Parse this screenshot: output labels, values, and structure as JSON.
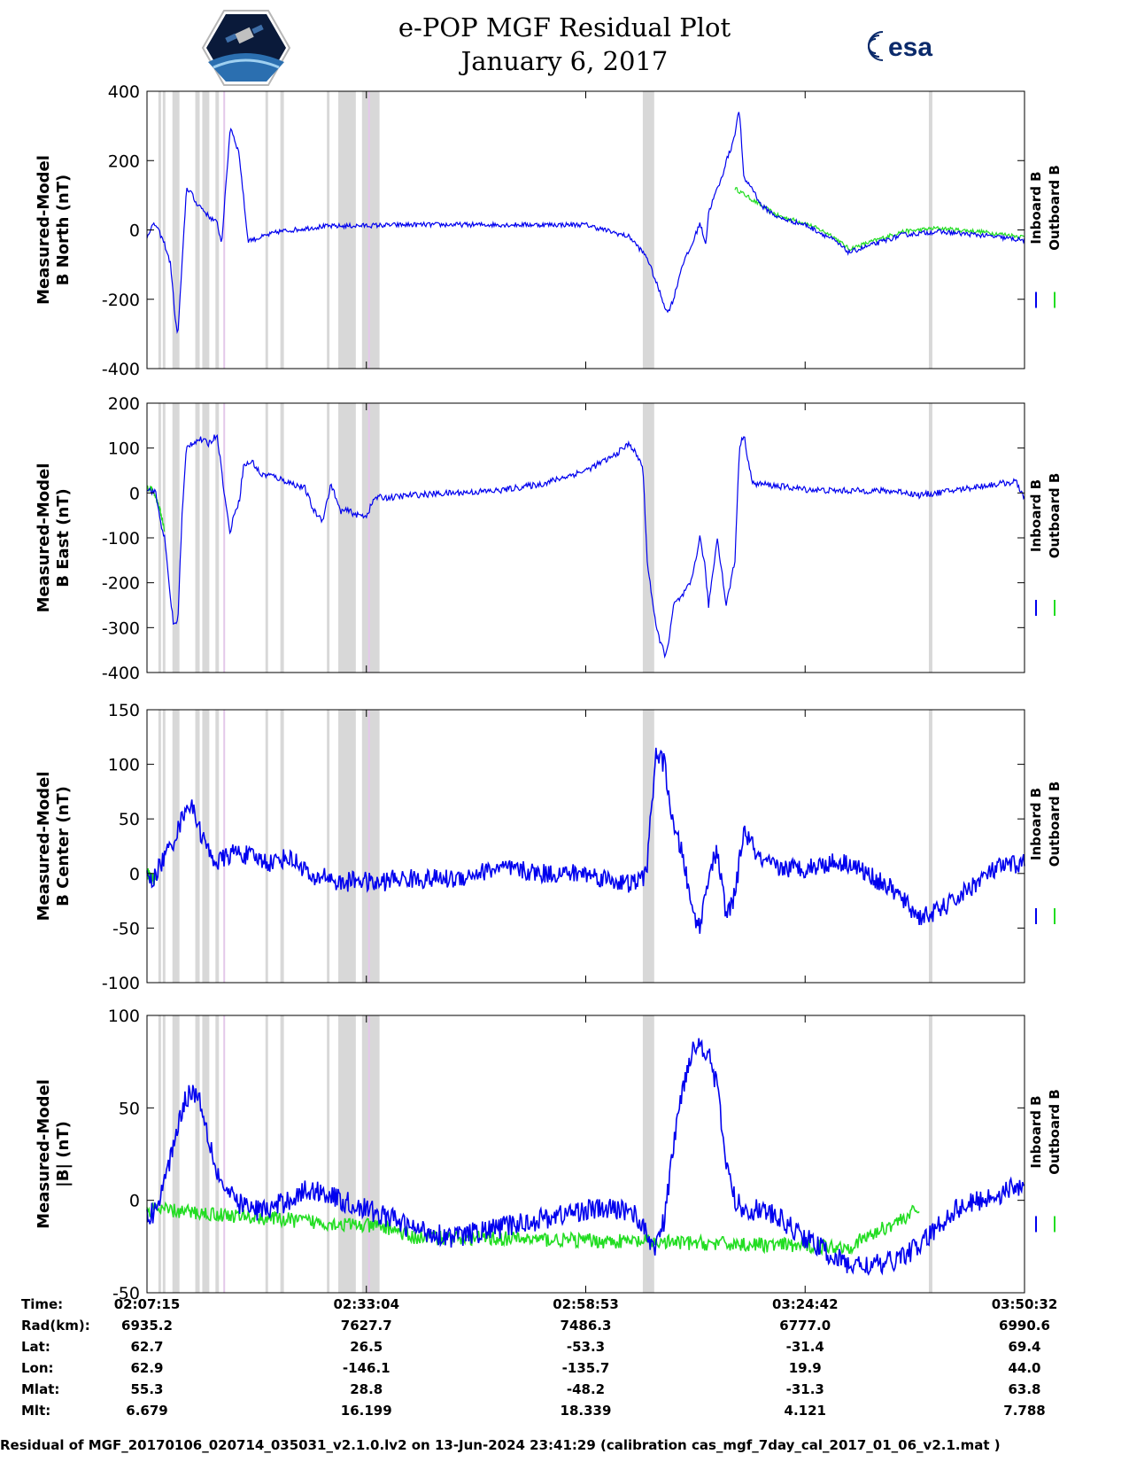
{
  "title": "e-POP MGF Residual Plot",
  "subtitle": "January 6, 2017",
  "logos": {
    "left": "cassiope-mission-logo",
    "right_text": "esa"
  },
  "legend": {
    "inboard": "Inboard B",
    "outboard": "Outboard B",
    "inboard_color": "#0000ee",
    "outboard_color": "#22dd22"
  },
  "colors": {
    "gap_shade": "#d8d8d8",
    "gap_magenta": "#e4c8ea"
  },
  "chart_data": [
    {
      "type": "line",
      "ylabel": [
        "Measured-Model",
        "B North (nT)"
      ],
      "ylim": [
        -400,
        400
      ],
      "yticks": [
        -400,
        -200,
        0,
        200,
        400
      ],
      "series": [
        {
          "name": "Inboard B",
          "color": "#0000ee",
          "x": [
            0,
            0.5,
            1,
            2,
            2.7,
            3.2,
            3.5,
            4,
            4.5,
            5,
            5.5,
            6,
            7,
            8,
            8.5,
            9.5,
            10.5,
            11.5,
            12.5,
            15,
            20,
            30,
            40,
            50,
            55,
            57,
            58,
            59.3,
            60,
            61,
            62,
            63,
            63.7,
            64,
            64.7,
            65.5,
            66,
            66.5,
            67,
            67.5,
            68,
            69,
            70,
            72,
            75,
            78,
            80,
            83,
            86,
            90,
            95,
            100
          ],
          "y": [
            -20,
            10,
            15,
            -40,
            -100,
            -250,
            -310,
            -100,
            120,
            110,
            80,
            70,
            40,
            20,
            -40,
            300,
            220,
            -30,
            -25,
            -5,
            10,
            15,
            15,
            15,
            -20,
            -80,
            -150,
            -240,
            -200,
            -100,
            -50,
            20,
            -40,
            50,
            100,
            150,
            200,
            230,
            280,
            350,
            150,
            120,
            70,
            35,
            15,
            -25,
            -65,
            -40,
            -15,
            -5,
            -15,
            -30
          ],
          "noise": 7
        },
        {
          "name": "Outboard B",
          "color": "#22dd22",
          "x": [
            67,
            70,
            72,
            75,
            78,
            80,
            83,
            86,
            90,
            95,
            100
          ],
          "y": [
            120,
            70,
            40,
            20,
            -15,
            -55,
            -30,
            -5,
            5,
            -5,
            -20
          ],
          "noise": 6
        }
      ]
    },
    {
      "type": "line",
      "ylabel": [
        "Measured-Model",
        "B East (nT)"
      ],
      "ylim": [
        -400,
        200
      ],
      "yticks": [
        -400,
        -300,
        -200,
        -100,
        0,
        100,
        200
      ],
      "series": [
        {
          "name": "Inboard B",
          "color": "#0000ee",
          "x": [
            0,
            1,
            1.5,
            2,
            2.5,
            3,
            3.5,
            4,
            4.5,
            5,
            6,
            7,
            8,
            9,
            9.5,
            10,
            10.5,
            11,
            12,
            13,
            14,
            16,
            18,
            19,
            20,
            21,
            22,
            23,
            24,
            25,
            26,
            28,
            30,
            35,
            40,
            45,
            50,
            53,
            55,
            56.5,
            57,
            58,
            59,
            59.5,
            60,
            61,
            62,
            63,
            63.5,
            64,
            65,
            66,
            67,
            67.5,
            68,
            69,
            70,
            72,
            75,
            78,
            80,
            83,
            86,
            88,
            90,
            95,
            99,
            100
          ],
          "y": [
            10,
            0,
            -60,
            -100,
            -200,
            -290,
            -290,
            -50,
            100,
            110,
            120,
            110,
            130,
            -30,
            -90,
            -40,
            -20,
            60,
            70,
            40,
            40,
            25,
            10,
            -40,
            -60,
            20,
            -40,
            -40,
            -50,
            -50,
            -10,
            -10,
            -5,
            0,
            5,
            20,
            50,
            80,
            110,
            60,
            -150,
            -300,
            -360,
            -330,
            -250,
            -230,
            -200,
            -100,
            -150,
            -250,
            -100,
            -250,
            -150,
            100,
            130,
            20,
            20,
            15,
            8,
            5,
            5,
            5,
            3,
            -5,
            0,
            15,
            25,
            -10
          ],
          "noise": 7
        },
        {
          "name": "Outboard B",
          "color": "#22dd22",
          "x": [
            0,
            0.5,
            1,
            1.5,
            2
          ],
          "y": [
            10,
            10,
            -10,
            -40,
            -80
          ],
          "noise": 7
        }
      ]
    },
    {
      "type": "line",
      "ylabel": [
        "Measured-Model",
        "B Center (nT)"
      ],
      "ylim": [
        -100,
        150
      ],
      "yticks": [
        -100,
        -50,
        0,
        50,
        100,
        150
      ],
      "series": [
        {
          "name": "Inboard B",
          "color": "#0000ee",
          "x": [
            0,
            0.5,
            1,
            2,
            3,
            4,
            4.5,
            5,
            5.5,
            6,
            7,
            8,
            9,
            10,
            12,
            14,
            16,
            18,
            19,
            20,
            22,
            24,
            26,
            28,
            30,
            35,
            40,
            45,
            50,
            55,
            56.5,
            57,
            58,
            59,
            60,
            61,
            62,
            63,
            64,
            65,
            66,
            67,
            68,
            70,
            72,
            75,
            78,
            80,
            82,
            85,
            88,
            90,
            92,
            95,
            97,
            100
          ],
          "y": [
            5,
            -10,
            0,
            15,
            30,
            50,
            65,
            60,
            55,
            40,
            20,
            10,
            15,
            20,
            15,
            10,
            15,
            5,
            -10,
            0,
            -10,
            -5,
            -10,
            -5,
            -5,
            -5,
            5,
            0,
            0,
            -10,
            -5,
            10,
            110,
            100,
            40,
            20,
            -30,
            -50,
            0,
            20,
            -40,
            -20,
            40,
            10,
            5,
            5,
            10,
            10,
            0,
            -15,
            -40,
            -35,
            -25,
            -5,
            5,
            10
          ],
          "noise": 9
        },
        {
          "name": "Outboard B",
          "color": "#22dd22",
          "x": [
            0,
            0.5,
            1
          ],
          "y": [
            0,
            -5,
            -5
          ],
          "noise": 6
        }
      ]
    },
    {
      "type": "line",
      "ylabel": [
        "Measured-Model",
        "|B| (nT)"
      ],
      "ylim": [
        -50,
        100
      ],
      "yticks": [
        -50,
        0,
        50,
        100
      ],
      "series": [
        {
          "name": "Inboard B",
          "color": "#0000ee",
          "x": [
            0,
            1,
            2,
            3,
            4,
            5,
            6,
            7,
            8,
            9,
            10,
            12,
            14,
            16,
            18,
            20,
            22,
            25,
            28,
            30,
            35,
            40,
            45,
            50,
            55,
            56,
            57,
            58,
            59,
            60,
            61,
            62,
            63,
            64,
            65,
            66,
            67,
            68,
            69,
            70,
            72,
            75,
            78,
            80,
            82,
            84,
            86,
            88,
            90,
            92,
            95,
            98,
            100
          ],
          "y": [
            -10,
            -5,
            10,
            30,
            50,
            60,
            55,
            35,
            15,
            5,
            0,
            -5,
            -5,
            0,
            5,
            5,
            0,
            -5,
            -10,
            -15,
            -20,
            -15,
            -10,
            -5,
            -5,
            -10,
            -20,
            -25,
            -10,
            30,
            60,
            80,
            85,
            80,
            60,
            20,
            0,
            -5,
            -5,
            -5,
            -10,
            -20,
            -30,
            -35,
            -35,
            -35,
            -30,
            -25,
            -15,
            -5,
            0,
            5,
            10
          ],
          "noise": 6
        },
        {
          "name": "Outboard B",
          "color": "#22dd22",
          "x": [
            0,
            1,
            28,
            30,
            35,
            78,
            80,
            82,
            84,
            86,
            88
          ],
          "y": [
            -5,
            -5,
            -15,
            -20,
            -20,
            -25,
            -25,
            -20,
            -15,
            -10,
            -5
          ],
          "noise": 4
        }
      ]
    }
  ],
  "gaps_grey": [
    [
      1.3,
      1.6
    ],
    [
      1.8,
      2.1
    ],
    [
      2.9,
      3.7
    ],
    [
      5.5,
      6.0
    ],
    [
      6.3,
      7.1
    ],
    [
      7.8,
      8.2
    ],
    [
      13.5,
      13.8
    ],
    [
      15.2,
      15.6
    ],
    [
      20.5,
      20.8
    ],
    [
      21.8,
      23.8
    ],
    [
      24.5,
      26.5
    ],
    [
      56.5,
      57.8
    ],
    [
      89.1,
      89.5
    ]
  ],
  "gaps_magenta": [
    [
      8.7,
      8.9
    ],
    [
      25.2,
      25.4
    ]
  ],
  "time_axis": {
    "labels": [
      "Time:",
      "Rad(km):",
      "Lat:",
      "Lon:",
      "Mlat:",
      "Mlt:"
    ],
    "columns": [
      {
        "Time": "02:07:15",
        "Rad": "6935.2",
        "Lat": "62.7",
        "Lon": "62.9",
        "Mlat": "55.3",
        "Mlt": "6.679"
      },
      {
        "Time": "02:33:04",
        "Rad": "7627.7",
        "Lat": "26.5",
        "Lon": "-146.1",
        "Mlat": "28.8",
        "Mlt": "16.199"
      },
      {
        "Time": "02:58:53",
        "Rad": "7486.3",
        "Lat": "-53.3",
        "Lon": "-135.7",
        "Mlat": "-48.2",
        "Mlt": "18.339"
      },
      {
        "Time": "03:24:42",
        "Rad": "6777.0",
        "Lat": "-31.4",
        "Lon": "19.9",
        "Mlat": "-31.3",
        "Mlt": "4.121"
      },
      {
        "Time": "03:50:32",
        "Rad": "6990.6",
        "Lat": "69.4",
        "Lon": "44.0",
        "Mlat": "63.8",
        "Mlt": "7.788"
      }
    ]
  },
  "footer": "Residual of MGF_20170106_020714_035031_v2.1.0.lv2 on 13-Jun-2024 23:41:29 (calibration cas_mgf_7day_cal_2017_01_06_v2.1.mat )"
}
